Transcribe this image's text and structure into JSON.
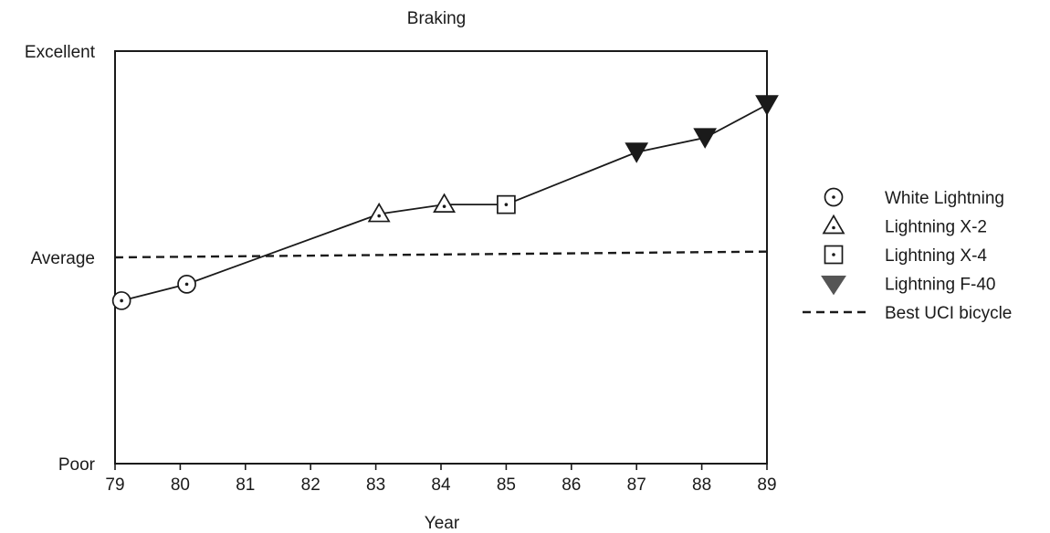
{
  "chart_data": {
    "type": "line",
    "title": "Braking",
    "xlabel": "Year",
    "ylabel": "",
    "x_ticks": [
      "79",
      "80",
      "81",
      "82",
      "83",
      "84",
      "85",
      "86",
      "87",
      "88",
      "89"
    ],
    "xlim": [
      79,
      89
    ],
    "y_ticks": [
      {
        "label": "Excellent",
        "value": 1.0
      },
      {
        "label": "Average",
        "value": 0.5
      },
      {
        "label": "Poor",
        "value": 0.0
      }
    ],
    "ylim": [
      0,
      1
    ],
    "series": [
      {
        "name": "White Lightning",
        "marker": "circle-dot",
        "points": [
          {
            "x": 79.1,
            "y": 0.395
          },
          {
            "x": 80.1,
            "y": 0.435
          }
        ]
      },
      {
        "name": "Lightning X-2",
        "marker": "triangle-dot",
        "points": [
          {
            "x": 83.05,
            "y": 0.605
          },
          {
            "x": 84.05,
            "y": 0.628
          }
        ]
      },
      {
        "name": "Lightning X-4",
        "marker": "square-dot",
        "points": [
          {
            "x": 85.0,
            "y": 0.628
          }
        ]
      },
      {
        "name": "Lightning F-40",
        "marker": "filled-triangle-down",
        "points": [
          {
            "x": 87.0,
            "y": 0.755
          },
          {
            "x": 88.05,
            "y": 0.79
          },
          {
            "x": 89.0,
            "y": 0.87
          }
        ]
      }
    ],
    "reference_line": {
      "name": "Best UCI bicycle",
      "style": "dashed",
      "points": [
        {
          "x": 79.0,
          "y": 0.5
        },
        {
          "x": 89.0,
          "y": 0.514
        }
      ]
    },
    "grid": false,
    "legend_position": "right",
    "colors": {
      "ink": "#1a1a1a",
      "background": "#ffffff"
    }
  }
}
